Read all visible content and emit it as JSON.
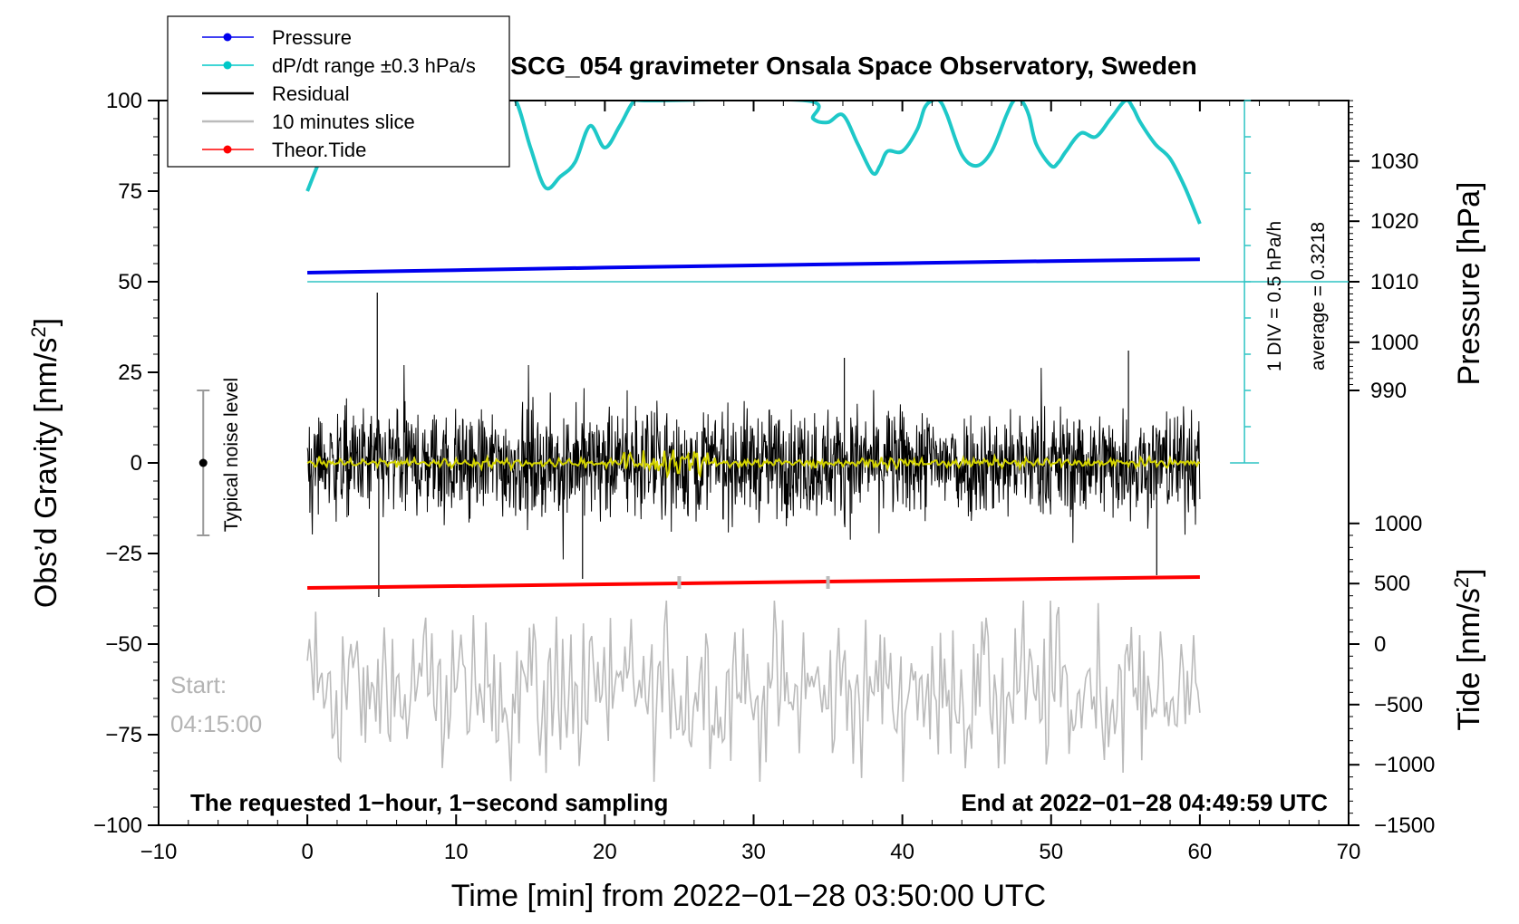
{
  "chart_data": {
    "type": "line",
    "title": "SCG_054 gravimeter Onsala Space Observatory, Sweden",
    "xlabel": "Time [min] from 2022−01−28 03:50:00 UTC",
    "ylabel": "Obs’d Gravity [nm/s",
    "ylabel_sup": "2",
    "ylabel_close": "]",
    "y2label": "Pressure [hPa]",
    "y3label": "Tide [nm/s",
    "y3label_sup": "2",
    "y3label_close": "]",
    "xlim": [
      -10,
      70
    ],
    "ylim": [
      -100,
      100
    ],
    "x_ticks": [
      -10,
      0,
      10,
      20,
      30,
      40,
      50,
      60,
      70
    ],
    "x_tick_labels": [
      "−10",
      "0",
      "10",
      "20",
      "30",
      "40",
      "50",
      "60",
      "70"
    ],
    "y_ticks": [
      -100,
      -75,
      -50,
      -25,
      0,
      25,
      50,
      75,
      100
    ],
    "y_tick_labels": [
      "−100",
      "−75",
      "−50",
      "−25",
      "0",
      "25",
      "50",
      "75",
      "100"
    ],
    "pressure_axis": {
      "ticks": [
        990,
        1000,
        1010,
        1020,
        1030
      ],
      "tick_labels": [
        "990",
        "1000",
        "1010",
        "1020",
        "1030"
      ],
      "gravity_equivalent": {
        "990": 20,
        "1000": 33.3,
        "1010": 50,
        "1020": 66.7,
        "1030": 83.3
      }
    },
    "tide_axis": {
      "ticks": [
        -1500,
        -1000,
        -500,
        0,
        500,
        1000
      ],
      "tick_labels": [
        "−1500",
        "−1000",
        "−500",
        "0",
        "500",
        "1000"
      ],
      "gravity_equivalent": {
        "-1500": -100,
        "-1000": -83.3,
        "-500": -66.7,
        "0": -50,
        "500": -33.3,
        "1000": -16.7
      }
    },
    "legend": [
      {
        "label": "Pressure",
        "color": "#0000ee",
        "marker": true
      },
      {
        "label": "dP/dt range ±0.3 hPa/s",
        "color": "#00c8c8",
        "marker": true
      },
      {
        "label": "Residual",
        "color": "#000000",
        "marker": false
      },
      {
        "label": "10 minutes slice",
        "color": "#bbbbbb",
        "marker": false
      },
      {
        "label": "Theor.Tide",
        "color": "#ff0000",
        "marker": true
      }
    ],
    "series": [
      {
        "name": "Pressure",
        "color": "#0000ee",
        "x": [
          0,
          10,
          20,
          30,
          40,
          50,
          60
        ],
        "y": [
          52.5,
          53.2,
          53.9,
          54.5,
          55.1,
          55.7,
          56.2
        ]
      },
      {
        "name": "dP/dt range",
        "color": "#1ec8c8",
        "x": [
          0,
          1,
          2,
          3,
          4,
          5,
          6,
          12,
          13,
          14,
          15,
          16,
          17,
          18,
          19,
          20,
          21,
          22,
          23,
          33.5,
          34,
          35,
          36,
          37,
          38,
          38.5,
          39,
          40,
          41,
          41.5,
          42,
          42.5,
          43,
          44,
          45,
          46,
          47,
          47.5,
          48,
          48.5,
          49,
          50,
          50.5,
          51,
          52,
          53,
          54,
          55,
          55.5,
          56,
          57,
          58,
          59,
          60
        ],
        "y": [
          75,
          85,
          92,
          98,
          100,
          100,
          100,
          100,
          100,
          100,
          87,
          76,
          79,
          83,
          93,
          87,
          93,
          100,
          100,
          100,
          95,
          94,
          96,
          88,
          80,
          82,
          86,
          86,
          92,
          98,
          100,
          100,
          96,
          85,
          82,
          86,
          96,
          100,
          100,
          96,
          88,
          82,
          83,
          86,
          91,
          90,
          95,
          100,
          98,
          94,
          88,
          84,
          76,
          66
        ]
      },
      {
        "name": "Residual",
        "color": "#000000",
        "center": 0,
        "amplitude_typical": 10,
        "spikes_x": [
          4.7,
          4.8,
          18.5,
          57.1,
          55.2,
          36.1
        ],
        "spikes_y": [
          47,
          -37,
          -32,
          -31,
          31,
          29
        ]
      },
      {
        "name": "10 minutes slice",
        "color": "#bbbbbb",
        "center": -63,
        "amplitude_typical": 12
      },
      {
        "name": "Theor.Tide",
        "color": "#ff0000",
        "x": [
          0,
          60
        ],
        "y": [
          -34.5,
          -31.5
        ]
      },
      {
        "name": "Smoothed residual",
        "color": "#d4d400",
        "center": 0,
        "amplitude_typical": 1
      }
    ],
    "pressure_average_line_y": 50,
    "noise_level": {
      "label": "Typical noise level",
      "x": -7,
      "y_center": 0,
      "y_range": [
        -20,
        20
      ]
    },
    "scale_bar": {
      "label_1": "1 DIV = 0.5 hPa/h",
      "label_2": "average = 0.3218",
      "x": 63,
      "y_range": [
        0,
        100
      ]
    },
    "slice_markers": [
      {
        "x": 25,
        "y": -33
      },
      {
        "x": 35,
        "y": -33
      }
    ],
    "annotations": {
      "start_label": "Start:",
      "start_time": "04:15:00",
      "bottom_left": "The requested 1−hour, 1−second sampling",
      "bottom_right": "End at 2022−01−28 04:49:59 UTC"
    }
  }
}
